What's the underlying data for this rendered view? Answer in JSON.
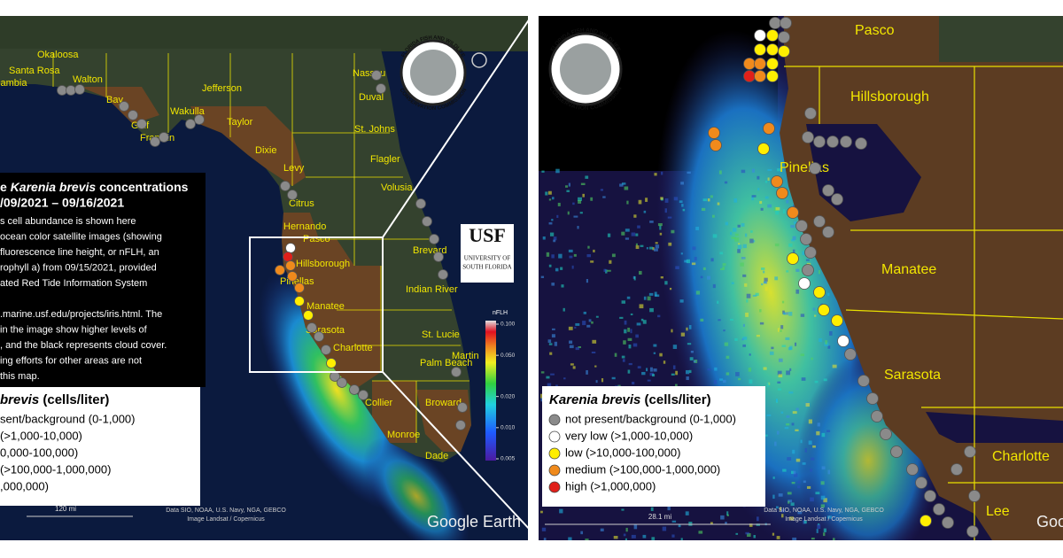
{
  "left_panel": {
    "county_labels": [
      "Okaloosa",
      "Santa Rosa",
      "cambia",
      "Walton",
      "Bay",
      "Gulf",
      "Franklin",
      "Wakulla",
      "Jefferson",
      "Taylor",
      "Dixie",
      "Levy",
      "Citrus",
      "Hernando",
      "Pasco",
      "Hillsborough",
      "Pinellas",
      "Manatee",
      "Sarasota",
      "Charlotte",
      "Collier",
      "Monroe",
      "Dade",
      "Broward",
      "Palm Beach",
      "Martin",
      "St. Lucie",
      "Indian River",
      "Brevard",
      "Volusia",
      "Flagler",
      "St. Johns",
      "Duval",
      "Nassau"
    ],
    "info_box": {
      "title_pre": "e ",
      "title_species": "Karenia brevis",
      "title_post": " concentrations",
      "date_range": "/09/2021 – 09/16/2021",
      "body": [
        "s cell abundance is shown here",
        "ocean color satellite images (showing",
        "fluorescence line height, or nFLH, an",
        "rophyll a) from 09/15/2021, provided",
        "ated Red Tide Information System",
        ".marine.usf.edu/projects/iris.html. The",
        " in the image show higher levels of",
        ", and the black represents cloud cover.",
        "ing efforts for other areas are not",
        "this map."
      ]
    },
    "legend": {
      "title_species": "brevis",
      "title_units": " (cells/liter)",
      "items": [
        "sent/background (0-1,000)",
        "(>1,000-10,000)",
        "0,000-100,000)",
        "(>100,000-1,000,000)",
        ",000,000)"
      ]
    },
    "colorbar": {
      "label": "nFLH",
      "log": true,
      "lim": [
        0.005,
        0.1
      ],
      "ticks": [
        {
          "value": 0.1,
          "label": "0.100"
        },
        {
          "value": 0.05,
          "label": "0.050"
        },
        {
          "value": 0.02,
          "label": "0.020"
        },
        {
          "value": 0.01,
          "label": "0.010"
        },
        {
          "value": 0.005,
          "label": "0.005"
        }
      ]
    },
    "usf_logo": {
      "name": "USF",
      "line1": "UNIVERSITY OF",
      "line2": "SOUTH FLORIDA"
    },
    "fwc_logo": [
      "FLORIDA FISH AND WILDLIFE",
      "CONSERVATION COMMISSION"
    ],
    "scale": "120 mi",
    "attribution": [
      "Data SIO, NOAA, U.S. Navy, NGA, GEBCO",
      "Image Landsat / Copernicus"
    ],
    "brand": "Google Earth"
  },
  "right_panel": {
    "county_labels": [
      "Pasco",
      "Hillsborough",
      "Pinellas",
      "Manatee",
      "Sarasota",
      "Charlotte",
      "Lee"
    ],
    "legend": {
      "title_species": "Karenia brevis",
      "title_units": " (cells/liter)",
      "items": [
        {
          "label": "not present/background (0-1,000)",
          "color": "#8a8a8a"
        },
        {
          "label": "very low (>1,000-10,000)",
          "color": "#ffffff"
        },
        {
          "label": "low (>10,000-100,000)",
          "color": "#ffee00"
        },
        {
          "label": "medium (>100,000-1,000,000)",
          "color": "#f08a1c"
        },
        {
          "label": "high (>1,000,000)",
          "color": "#e0201a"
        }
      ]
    },
    "fwc_logo": [
      "FLORIDA FISH AND WILDLIFE",
      "CONSERVATION COMMISSION"
    ],
    "scale": "28.1 mi",
    "attribution": [
      "Data SIO, NOAA, U.S. Navy, NGA, GEBCO",
      "Image Landsat / Copernicus"
    ],
    "brand": "Goo"
  }
}
